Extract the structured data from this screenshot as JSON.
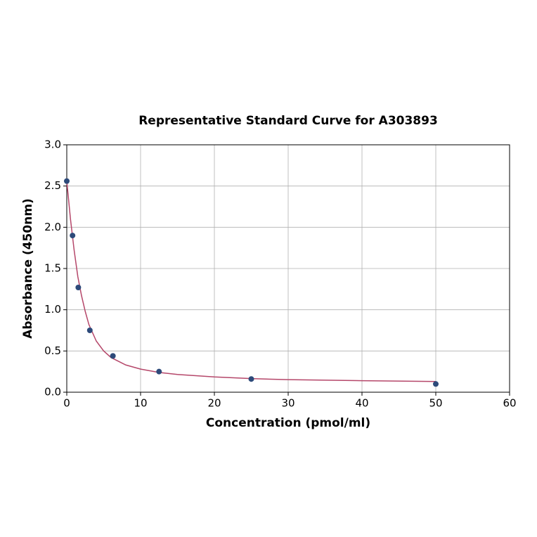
{
  "chart_data": {
    "type": "scatter",
    "title": "Representative Standard Curve for A303893",
    "x_label": "Concentration (pmol/ml)",
    "y_label": "Absorbance (450nm)",
    "points": {
      "color": "#2d4a7a",
      "x": [
        0,
        0.78,
        1.56,
        3.125,
        6.25,
        12.5,
        25,
        50
      ],
      "y": [
        2.56,
        1.9,
        1.27,
        0.75,
        0.44,
        0.25,
        0.16,
        0.1
      ]
    },
    "curve": {
      "color": "#b5476a",
      "x": [
        0,
        0.5,
        1,
        1.5,
        2,
        2.5,
        3,
        4,
        5,
        6,
        8,
        10,
        12.5,
        15,
        20,
        25,
        30,
        40,
        50
      ],
      "y": [
        2.56,
        2.1,
        1.72,
        1.4,
        1.17,
        0.98,
        0.82,
        0.62,
        0.5,
        0.42,
        0.33,
        0.28,
        0.24,
        0.215,
        0.185,
        0.165,
        0.152,
        0.14,
        0.13
      ]
    },
    "xlim": [
      0,
      60
    ],
    "xticks": [
      0,
      10,
      20,
      30,
      40,
      50,
      60
    ],
    "ylim": [
      0,
      3
    ],
    "yticks": [
      {
        "value": 0,
        "label": "0.0"
      },
      {
        "value": 0.5,
        "label": "0.5"
      },
      {
        "value": 1,
        "label": "1.0"
      },
      {
        "value": 1.5,
        "label": "1.5"
      },
      {
        "value": 2,
        "label": "2.0"
      },
      {
        "value": 2.5,
        "label": "2.5"
      },
      {
        "value": 3,
        "label": "3.0"
      }
    ],
    "grid": true
  }
}
